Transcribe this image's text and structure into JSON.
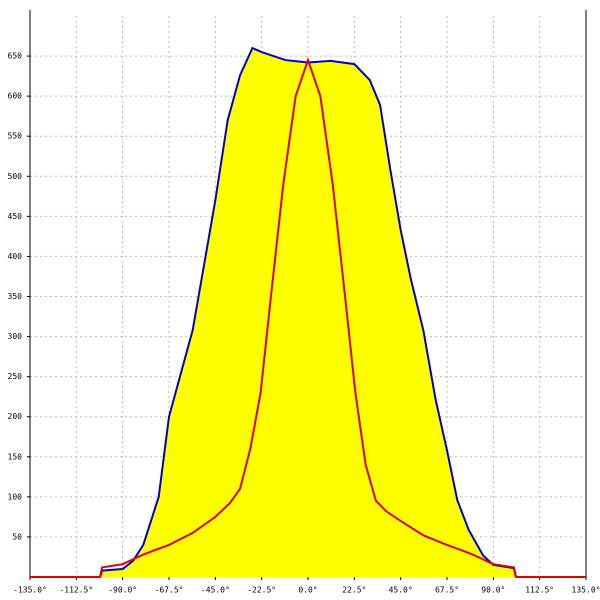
{
  "chart_data": {
    "type": "line",
    "xlim": [
      -135,
      135
    ],
    "xticks": [
      {
        "value": -135,
        "label": "-135.0°"
      },
      {
        "value": -112.5,
        "label": "-112.5°"
      },
      {
        "value": -90,
        "label": "-90.0°"
      },
      {
        "value": -67.5,
        "label": "-67.5°"
      },
      {
        "value": -45,
        "label": "-45.0°"
      },
      {
        "value": -22.5,
        "label": "-22.5°"
      },
      {
        "value": 0,
        "label": "0.0°"
      },
      {
        "value": 22.5,
        "label": "22.5°"
      },
      {
        "value": 45,
        "label": "45.0°"
      },
      {
        "value": 67.5,
        "label": "67.5°"
      },
      {
        "value": 90,
        "label": "90.0°"
      },
      {
        "value": 112.5,
        "label": "112.5°"
      },
      {
        "value": 135,
        "label": "135.0°"
      }
    ],
    "ylim": [
      0,
      700
    ],
    "yticks": [
      50,
      100,
      150,
      200,
      250,
      300,
      350,
      400,
      450,
      500,
      550,
      600,
      650
    ],
    "grid": true,
    "series": [
      {
        "color": "#0000cc",
        "fill": "#ffff00",
        "x": [
          -101,
          -100,
          -90,
          -85,
          -80,
          -75,
          -72.5,
          -67.5,
          -56,
          -45,
          -39,
          -33,
          -27,
          -22.5,
          -11,
          0,
          11,
          22.5,
          30,
          35,
          40,
          45,
          50,
          56,
          62,
          67.5,
          72.5,
          78,
          85,
          90,
          100,
          101
        ],
        "values": [
          0,
          8,
          10,
          20,
          40,
          80,
          100,
          200,
          308,
          470,
          570,
          626,
          660,
          655,
          645,
          642,
          644,
          640,
          620,
          589,
          508,
          433,
          371,
          308,
          221,
          158,
          96,
          59,
          27,
          15,
          11,
          0
        ]
      },
      {
        "color": "#dd0000",
        "x": [
          -135,
          -101,
          -100,
          -90,
          -85,
          -80,
          -75,
          -67.5,
          -56,
          -45,
          -38,
          -33,
          -28,
          -23,
          -18,
          -12,
          -6,
          0,
          6,
          12,
          18,
          23,
          28,
          33,
          38,
          45,
          56,
          67.5,
          75,
          80,
          85,
          90,
          100,
          101,
          135
        ],
        "values": [
          0,
          0,
          12,
          16,
          22,
          28,
          33,
          40,
          55,
          75,
          92,
          110,
          160,
          230,
          350,
          490,
          600,
          645,
          600,
          490,
          350,
          230,
          140,
          95,
          82,
          70,
          52,
          40,
          33,
          28,
          22,
          16,
          12,
          0,
          0
        ]
      }
    ]
  }
}
